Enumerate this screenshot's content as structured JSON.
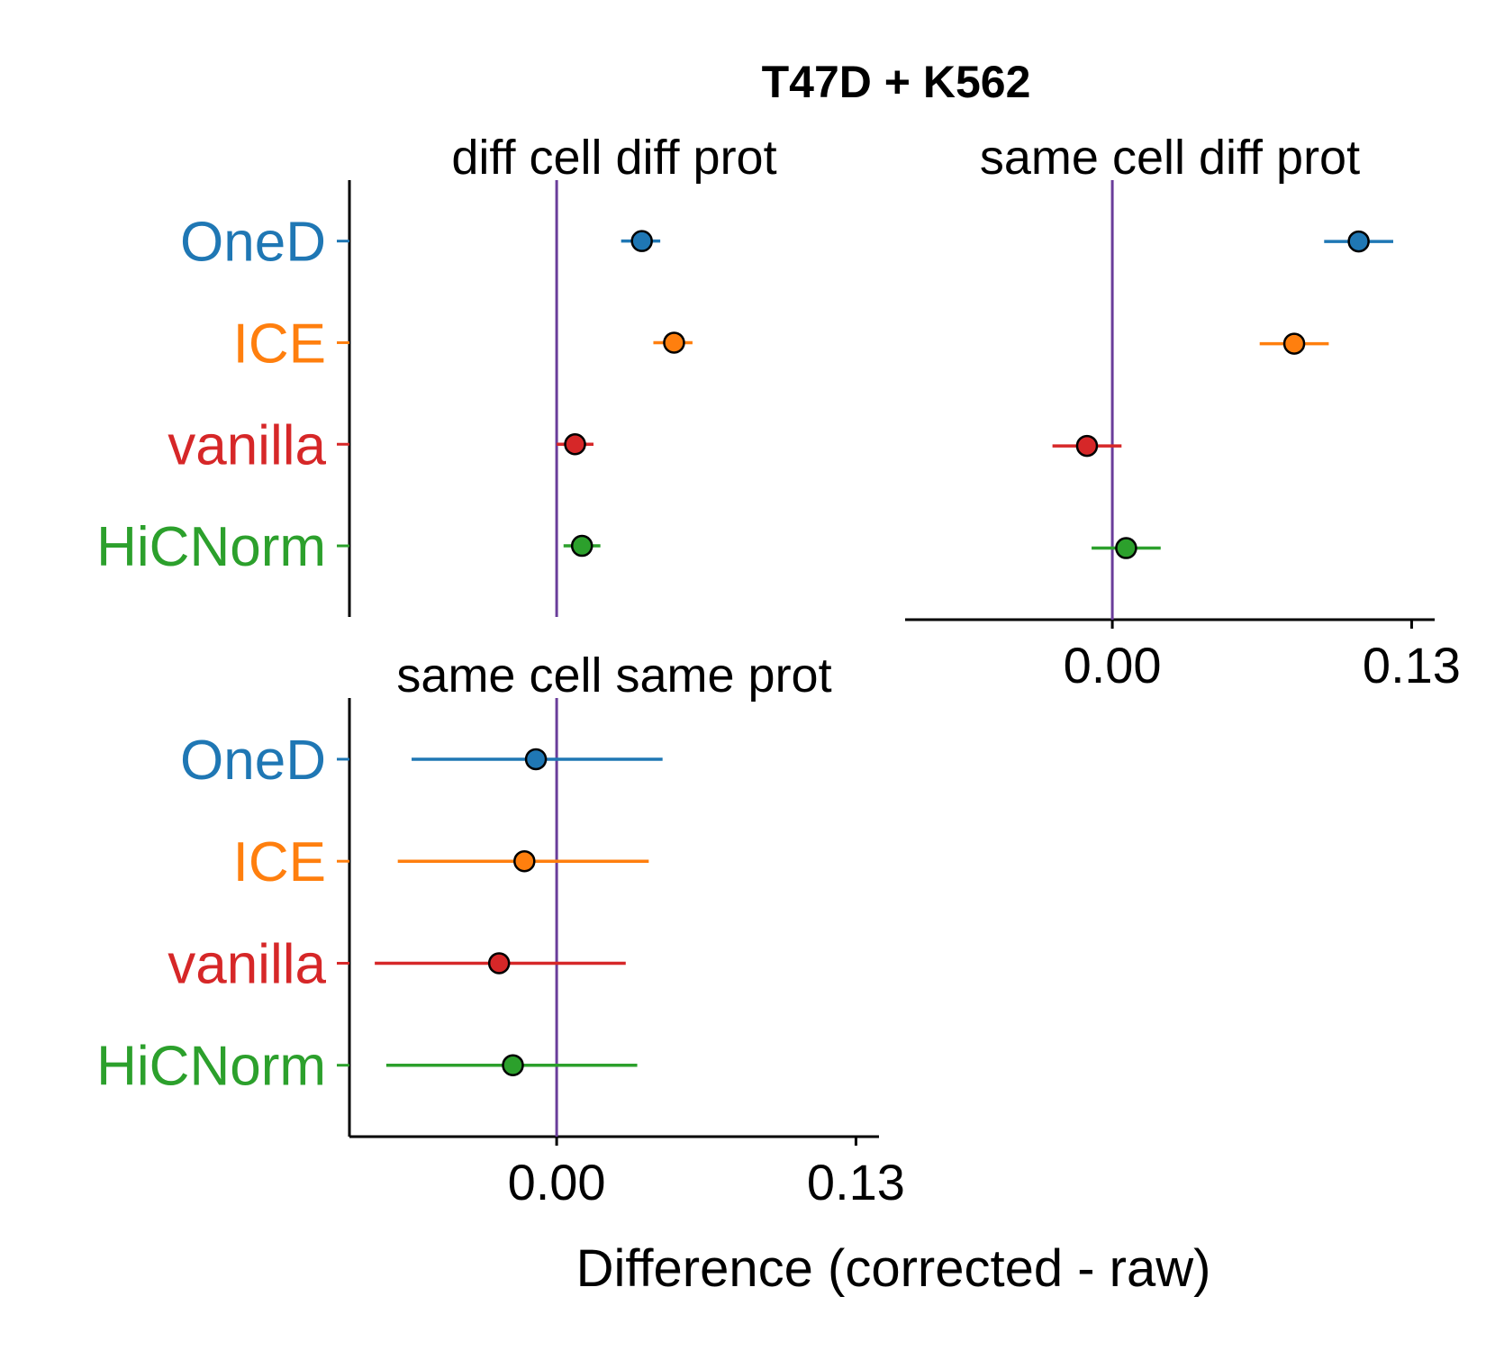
{
  "title": "T47D + K562",
  "xlabel": "Difference (corrected - raw)",
  "colors": {
    "OneD": "#1f77b4",
    "ICE": "#ff7f0e",
    "vanilla": "#d62728",
    "HiCNorm": "#2ca02c",
    "reference_line": "#6a3d9a",
    "axis": "#000000"
  },
  "chart_data": [
    {
      "type": "scatter",
      "panel": "diff cell diff prot",
      "categories": [
        "OneD",
        "ICE",
        "vanilla",
        "HiCNorm"
      ],
      "values": [
        0.037,
        0.051,
        0.008,
        0.011
      ],
      "ci_low": [
        0.028,
        0.042,
        0.0,
        0.003
      ],
      "ci_high": [
        0.045,
        0.059,
        0.016,
        0.019
      ],
      "xlim": [
        -0.09,
        0.14
      ],
      "xticks": [
        "0.00",
        "0.13"
      ],
      "xticks_shown": false,
      "reference_line": 0
    },
    {
      "type": "scatter",
      "panel": "same cell diff prot",
      "categories": [
        "OneD",
        "ICE",
        "vanilla",
        "HiCNorm"
      ],
      "values": [
        0.107,
        0.079,
        -0.011,
        0.006
      ],
      "ci_low": [
        0.092,
        0.064,
        -0.026,
        -0.009
      ],
      "ci_high": [
        0.122,
        0.094,
        0.004,
        0.021
      ],
      "xlim": [
        -0.09,
        0.14
      ],
      "xticks": [
        "0.00",
        "0.13"
      ],
      "xticks_shown": true,
      "reference_line": 0
    },
    {
      "type": "scatter",
      "panel": "same cell same prot",
      "categories": [
        "OneD",
        "ICE",
        "vanilla",
        "HiCNorm"
      ],
      "values": [
        -0.009,
        -0.014,
        -0.025,
        -0.019
      ],
      "ci_low": [
        -0.063,
        -0.069,
        -0.079,
        -0.074
      ],
      "ci_high": [
        0.046,
        0.04,
        0.03,
        0.035
      ],
      "xlim": [
        -0.09,
        0.14
      ],
      "xticks": [
        "0.00",
        "0.13"
      ],
      "xticks_shown": true,
      "reference_line": 0
    }
  ]
}
